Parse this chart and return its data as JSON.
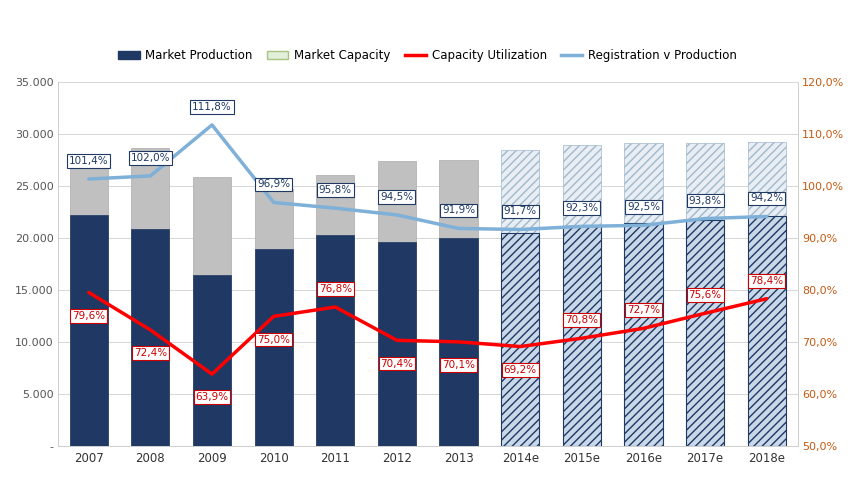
{
  "years": [
    "2007",
    "2008",
    "2009",
    "2010",
    "2011",
    "2012",
    "2013",
    "2014e",
    "2015e",
    "2016e",
    "2017e",
    "2018e"
  ],
  "market_production": [
    22200,
    20900,
    16500,
    19000,
    20300,
    19600,
    20000,
    20500,
    21200,
    21500,
    21800,
    22100
  ],
  "market_capacity": [
    27300,
    28700,
    25900,
    24700,
    26100,
    27400,
    27500,
    28500,
    29000,
    29200,
    29200,
    29300
  ],
  "capacity_utilization": [
    79.6,
    72.4,
    63.9,
    75.0,
    76.8,
    70.4,
    70.1,
    69.2,
    70.8,
    72.7,
    75.6,
    78.4
  ],
  "registration_v_production": [
    101.4,
    102.0,
    111.8,
    96.9,
    95.8,
    94.5,
    91.9,
    91.7,
    92.3,
    92.5,
    93.8,
    94.2
  ],
  "cap_util_labels": [
    "79,6%",
    "72,4%",
    "63,9%",
    "75,0%",
    "76,8%",
    "70,4%",
    "70,1%",
    "69,2%",
    "70,8%",
    "72,7%",
    "75,6%",
    "78,4%"
  ],
  "reg_prod_labels": [
    "101,4%",
    "102,0%",
    "111,8%",
    "96,9%",
    "95,8%",
    "94,5%",
    "91,9%",
    "91,7%",
    "92,3%",
    "92,5%",
    "93,8%",
    "94,2%"
  ],
  "bar_prod_solid_color": "#1F3864",
  "bar_cap_solid_color": "#C0C0C0",
  "bar_prod_hatch_facecolor": "#C8D8E8",
  "bar_prod_hatch_edgecolor": "#1F3864",
  "bar_cap_hatch_facecolor": "#E8EEF4",
  "bar_cap_hatch_edgecolor": "#A0B8CC",
  "line_color_cap": "#FF0000",
  "line_color_reg": "#7EB0D8",
  "ylim_left": [
    0,
    35000
  ],
  "ylim_right": [
    50,
    120
  ],
  "yticks_left": [
    0,
    5000,
    10000,
    15000,
    20000,
    25000,
    30000,
    35000
  ],
  "yticks_right": [
    50,
    60,
    70,
    80,
    90,
    100,
    110,
    120
  ],
  "background_color": "#FFFFFF",
  "grid_color": "#D0D0D0",
  "right_axis_label_color": "#C55A11",
  "n_solid": 7,
  "n_total": 12,
  "legend_cap_color": "#E2EFDA",
  "legend_cap_edge": "#A9C47F"
}
